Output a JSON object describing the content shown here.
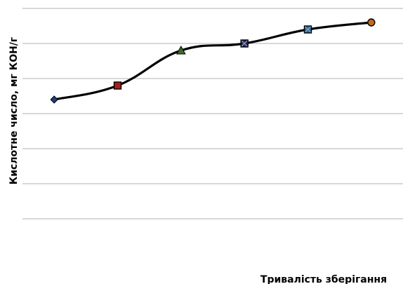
{
  "chart_data": {
    "type": "line",
    "title": "",
    "xlabel": "Тривалість зберігання",
    "ylabel": "Кислотне число, мг КОН/г",
    "ylim": [
      0,
      6
    ],
    "grid": true,
    "legend": "none",
    "x": [
      1,
      2,
      3,
      4,
      5,
      6
    ],
    "series": [
      {
        "values": [
          3.4,
          3.8,
          4.8,
          5.0,
          5.4,
          5.6
        ],
        "markers": [
          "diamond",
          "square",
          "triangle",
          "square-x",
          "square-x",
          "circle"
        ],
        "marker_colors": [
          "#1f3c88",
          "#a31f1f",
          "#3f6b2a",
          "#2b2b5a",
          "#2a6f8f",
          "#c46a1c"
        ]
      }
    ]
  }
}
